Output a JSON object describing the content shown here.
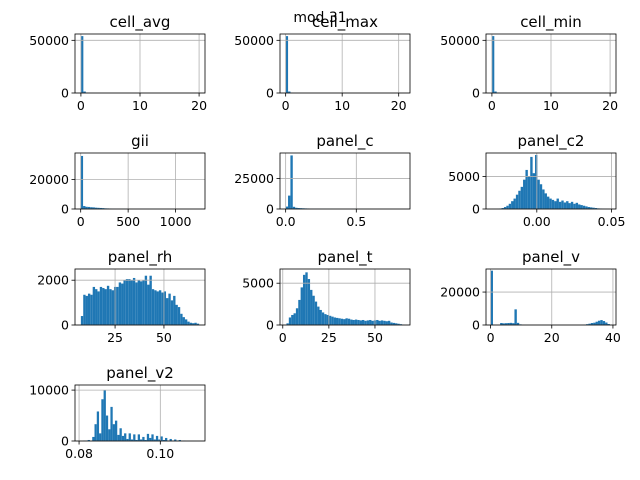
{
  "suptitle": "mod 31",
  "bar_color": "#1f77b4",
  "grid_color": "#b0b0b0",
  "chart_data": [
    {
      "type": "bar",
      "title": "cell_avg",
      "xlim": [
        -1,
        21
      ],
      "ylim": [
        0,
        56000
      ],
      "xticks": [
        0,
        10,
        20
      ],
      "xtick_labels": [
        "0",
        "10",
        "20"
      ],
      "yticks": [
        0,
        50000
      ],
      "ytick_labels": [
        "0",
        "50000"
      ],
      "grid": true,
      "bin_range": [
        0,
        20.6
      ],
      "counts": [
        54000,
        1400,
        400,
        150,
        100,
        60,
        40,
        30,
        20,
        15,
        10,
        10,
        8,
        6,
        5,
        5,
        4,
        3,
        3,
        2,
        2,
        2,
        2,
        1,
        1,
        1,
        1,
        1,
        1,
        1,
        1,
        1,
        1,
        1,
        1,
        1,
        1,
        1,
        1,
        1,
        1,
        1,
        1,
        1,
        1,
        1,
        1,
        1,
        1,
        1
      ]
    },
    {
      "type": "bar",
      "title": "cell_max",
      "xlim": [
        -1,
        22
      ],
      "ylim": [
        0,
        56000
      ],
      "xticks": [
        0,
        10,
        20
      ],
      "xtick_labels": [
        "0",
        "10",
        "20"
      ],
      "yticks": [
        0,
        50000
      ],
      "ytick_labels": [
        "0",
        "50000"
      ],
      "grid": true,
      "bin_range": [
        0,
        21.3
      ],
      "counts": [
        54000,
        1400,
        400,
        150,
        100,
        60,
        40,
        30,
        20,
        15,
        10,
        10,
        8,
        6,
        5,
        5,
        4,
        3,
        3,
        2,
        2,
        2,
        2,
        1,
        1,
        1,
        1,
        1,
        1,
        1,
        1,
        1,
        1,
        1,
        1,
        1,
        1,
        1,
        1,
        1,
        1,
        1,
        1,
        1,
        1,
        1,
        1,
        1,
        1,
        1
      ]
    },
    {
      "type": "bar",
      "title": "cell_min",
      "xlim": [
        -1,
        21
      ],
      "ylim": [
        0,
        56000
      ],
      "xticks": [
        0,
        10,
        20
      ],
      "xtick_labels": [
        "0",
        "10",
        "20"
      ],
      "yticks": [
        0,
        50000
      ],
      "ytick_labels": [
        "0",
        "50000"
      ],
      "grid": true,
      "bin_range": [
        0,
        20.2
      ],
      "counts": [
        54000,
        1400,
        400,
        150,
        100,
        60,
        40,
        30,
        20,
        15,
        10,
        10,
        8,
        6,
        5,
        5,
        4,
        3,
        3,
        2,
        2,
        2,
        2,
        1,
        1,
        1,
        1,
        1,
        1,
        1,
        1,
        1,
        1,
        1,
        1,
        1,
        1,
        1,
        1,
        1,
        1,
        1,
        1,
        1,
        1,
        1,
        1,
        1,
        1,
        1
      ]
    },
    {
      "type": "bar",
      "title": "gii",
      "xlim": [
        -60,
        1310
      ],
      "ylim": [
        0,
        38000
      ],
      "xticks": [
        0,
        500,
        1000
      ],
      "xtick_labels": [
        "0",
        "500",
        "1000"
      ],
      "yticks": [
        0,
        20000
      ],
      "ytick_labels": [
        "0",
        "20000"
      ],
      "grid": true,
      "bin_range": [
        0,
        1250
      ],
      "counts": [
        36000,
        2000,
        1500,
        1400,
        1200,
        1100,
        900,
        800,
        700,
        600,
        450,
        400,
        350,
        300,
        260,
        230,
        200,
        180,
        160,
        140,
        120,
        110,
        100,
        90,
        80,
        70,
        60,
        55,
        50,
        45,
        40,
        35,
        30,
        25,
        20,
        18,
        15,
        12,
        10,
        8,
        6,
        5,
        4,
        3,
        3,
        2,
        2,
        1,
        1,
        1
      ]
    },
    {
      "type": "bar",
      "title": "panel_c",
      "xlim": [
        -0.04,
        0.88
      ],
      "ylim": [
        0,
        46000
      ],
      "xticks": [
        0.0,
        0.5
      ],
      "xtick_labels": [
        "0.0",
        "0.5"
      ],
      "yticks": [
        0,
        25000
      ],
      "ytick_labels": [
        "0",
        "25000"
      ],
      "grid": true,
      "bin_range": [
        0,
        0.84
      ],
      "counts": [
        2000,
        11000,
        44000,
        1800,
        1000,
        800,
        700,
        600,
        500,
        450,
        400,
        350,
        320,
        300,
        280,
        260,
        240,
        220,
        200,
        180,
        160,
        150,
        140,
        130,
        120,
        110,
        100,
        90,
        80,
        70,
        60,
        55,
        50,
        45,
        40,
        35,
        30,
        25,
        20,
        15,
        12,
        10,
        8,
        6,
        5,
        4,
        3,
        2,
        1,
        1
      ]
    },
    {
      "type": "bar",
      "title": "panel_c2",
      "xlim": [
        -0.034,
        0.053
      ],
      "ylim": [
        0,
        8600
      ],
      "xticks": [
        0.0,
        0.05
      ],
      "xtick_labels": [
        "0.00",
        "0.05"
      ],
      "yticks": [
        0,
        5000
      ],
      "ytick_labels": [
        "0",
        "5000"
      ],
      "grid": true,
      "bin_range": [
        -0.03,
        0.05
      ],
      "counts": [
        20,
        30,
        50,
        80,
        150,
        300,
        500,
        800,
        1200,
        1600,
        2200,
        2800,
        3400,
        4500,
        6000,
        5000,
        8000,
        5500,
        8300,
        4500,
        3800,
        3000,
        2400,
        1900,
        1600,
        1400,
        1200,
        1600,
        1100,
        1300,
        1000,
        1200,
        900,
        1100,
        800,
        950,
        700,
        600,
        500,
        400,
        300,
        250,
        200,
        150,
        100,
        80,
        60,
        40,
        20,
        10
      ]
    },
    {
      "type": "bar",
      "title": "panel_rh",
      "xlim": [
        4.5,
        71
      ],
      "ylim": [
        0,
        2500
      ],
      "xticks": [
        25,
        50
      ],
      "xtick_labels": [
        "25",
        "50"
      ],
      "yticks": [
        0,
        2000
      ],
      "ytick_labels": [
        "0",
        "2000"
      ],
      "grid": true,
      "bin_range": [
        7.5,
        68
      ],
      "counts": [
        400,
        1350,
        1300,
        1400,
        1350,
        1700,
        1600,
        1500,
        1700,
        1650,
        1600,
        1750,
        1600,
        1550,
        1700,
        1700,
        1900,
        1850,
        2000,
        2050,
        2050,
        2000,
        2100,
        1900,
        2000,
        1950,
        2000,
        2200,
        1800,
        2200,
        1600,
        1550,
        1500,
        1550,
        1450,
        1500,
        1200,
        1400,
        1100,
        1300,
        900,
        800,
        500,
        350,
        250,
        150,
        100,
        80,
        100,
        60
      ]
    },
    {
      "type": "bar",
      "title": "panel_t",
      "xlim": [
        -1.5,
        69
      ],
      "ylim": [
        0,
        6700
      ],
      "xticks": [
        0,
        25,
        50
      ],
      "xtick_labels": [
        "0",
        "25",
        "50"
      ],
      "yticks": [
        0,
        5000
      ],
      "ytick_labels": [
        "0",
        "5000"
      ],
      "grid": true,
      "bin_range": [
        2,
        66
      ],
      "counts": [
        200,
        900,
        1200,
        1400,
        2000,
        3000,
        4500,
        6000,
        6300,
        5500,
        4200,
        3500,
        2800,
        2200,
        1800,
        1500,
        1300,
        1200,
        1100,
        1000,
        900,
        850,
        800,
        750,
        700,
        800,
        750,
        650,
        600,
        650,
        600,
        550,
        600,
        500,
        550,
        600,
        500,
        550,
        600,
        500,
        550,
        500,
        450,
        500,
        300,
        250,
        200,
        150,
        100,
        50
      ]
    },
    {
      "type": "bar",
      "title": "panel_v",
      "xlim": [
        -1.5,
        41
      ],
      "ylim": [
        0,
        34000
      ],
      "xticks": [
        0,
        20,
        40
      ],
      "xtick_labels": [
        "0",
        "20",
        "40"
      ],
      "yticks": [
        0,
        20000
      ],
      "ytick_labels": [
        "0",
        "20000"
      ],
      "grid": true,
      "bin_range": [
        0,
        39
      ],
      "counts": [
        33000,
        200,
        100,
        50,
        1200,
        1000,
        1100,
        1200,
        1300,
        1100,
        9500,
        1300,
        400,
        100,
        50,
        30,
        20,
        20,
        10,
        10,
        10,
        10,
        10,
        10,
        10,
        10,
        10,
        10,
        10,
        10,
        10,
        10,
        10,
        10,
        10,
        10,
        10,
        10,
        100,
        300,
        500,
        800,
        1200,
        1400,
        2000,
        2600,
        3000,
        2400,
        1500,
        600
      ]
    },
    {
      "type": "bar",
      "title": "panel_v2",
      "xlim": [
        0.079,
        0.111
      ],
      "ylim": [
        0,
        11000
      ],
      "xticks": [
        0.08,
        0.1
      ],
      "xtick_labels": [
        "0.08",
        "0.10"
      ],
      "yticks": [
        0,
        10000
      ],
      "ytick_labels": [
        "0",
        "10000"
      ],
      "grid": true,
      "bin_range": [
        0.081,
        0.109
      ],
      "counts": [
        100,
        100,
        200,
        0,
        800,
        3300,
        5800,
        1500,
        8200,
        10000,
        5000,
        2300,
        6700,
        3300,
        4000,
        1200,
        2500,
        1000,
        1500,
        400,
        1500,
        300,
        1300,
        200,
        1300,
        300,
        800,
        200,
        1400,
        600,
        1300,
        300,
        1000,
        300,
        900,
        200,
        600,
        100,
        400,
        100,
        300,
        50,
        200,
        50,
        100,
        30,
        50,
        20,
        10,
        10
      ]
    }
  ]
}
